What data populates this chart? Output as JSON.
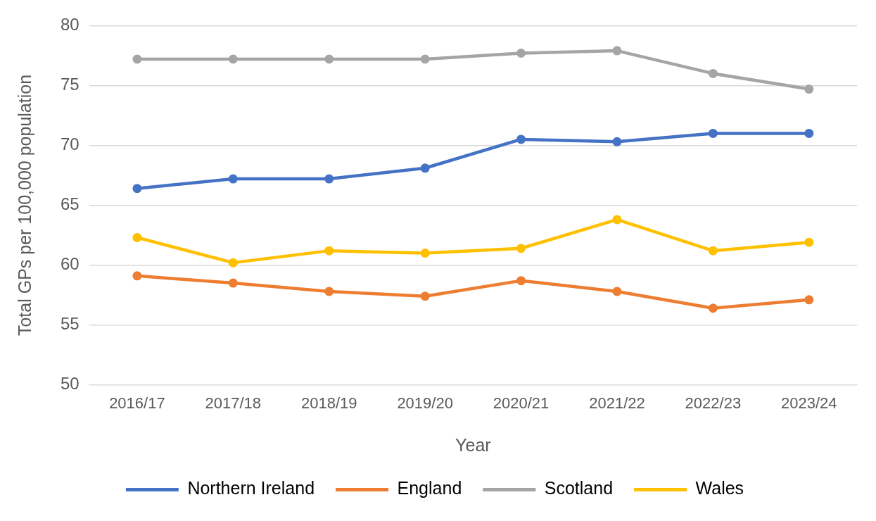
{
  "chart_data": {
    "type": "line",
    "xlabel": "Year",
    "ylabel": "Total GPs per 100,000 population",
    "categories": [
      "2016/17",
      "2017/18",
      "2018/19",
      "2019/20",
      "2020/21",
      "2021/22",
      "2022/23",
      "2023/24"
    ],
    "series": [
      {
        "name": "Northern Ireland",
        "color": "#4472c4",
        "values": [
          66.4,
          67.2,
          67.2,
          68.1,
          70.5,
          70.3,
          71.0,
          71.0
        ]
      },
      {
        "name": "England",
        "color": "#ed7d31",
        "values": [
          59.1,
          58.5,
          57.8,
          57.4,
          58.7,
          57.8,
          56.4,
          57.1
        ]
      },
      {
        "name": "Scotland",
        "color": "#a5a5a5",
        "values": [
          77.2,
          77.2,
          77.2,
          77.2,
          77.7,
          77.9,
          76.0,
          74.7
        ]
      },
      {
        "name": "Wales",
        "color": "#ffc000",
        "values": [
          62.3,
          60.2,
          61.2,
          61.0,
          61.4,
          63.8,
          61.2,
          61.9
        ]
      }
    ],
    "ylim": [
      50,
      80
    ],
    "yticks": [
      50,
      55,
      60,
      65,
      70,
      75,
      80
    ],
    "grid": "y",
    "legend": "bottom",
    "marker": "circle",
    "line_style": "solid"
  }
}
